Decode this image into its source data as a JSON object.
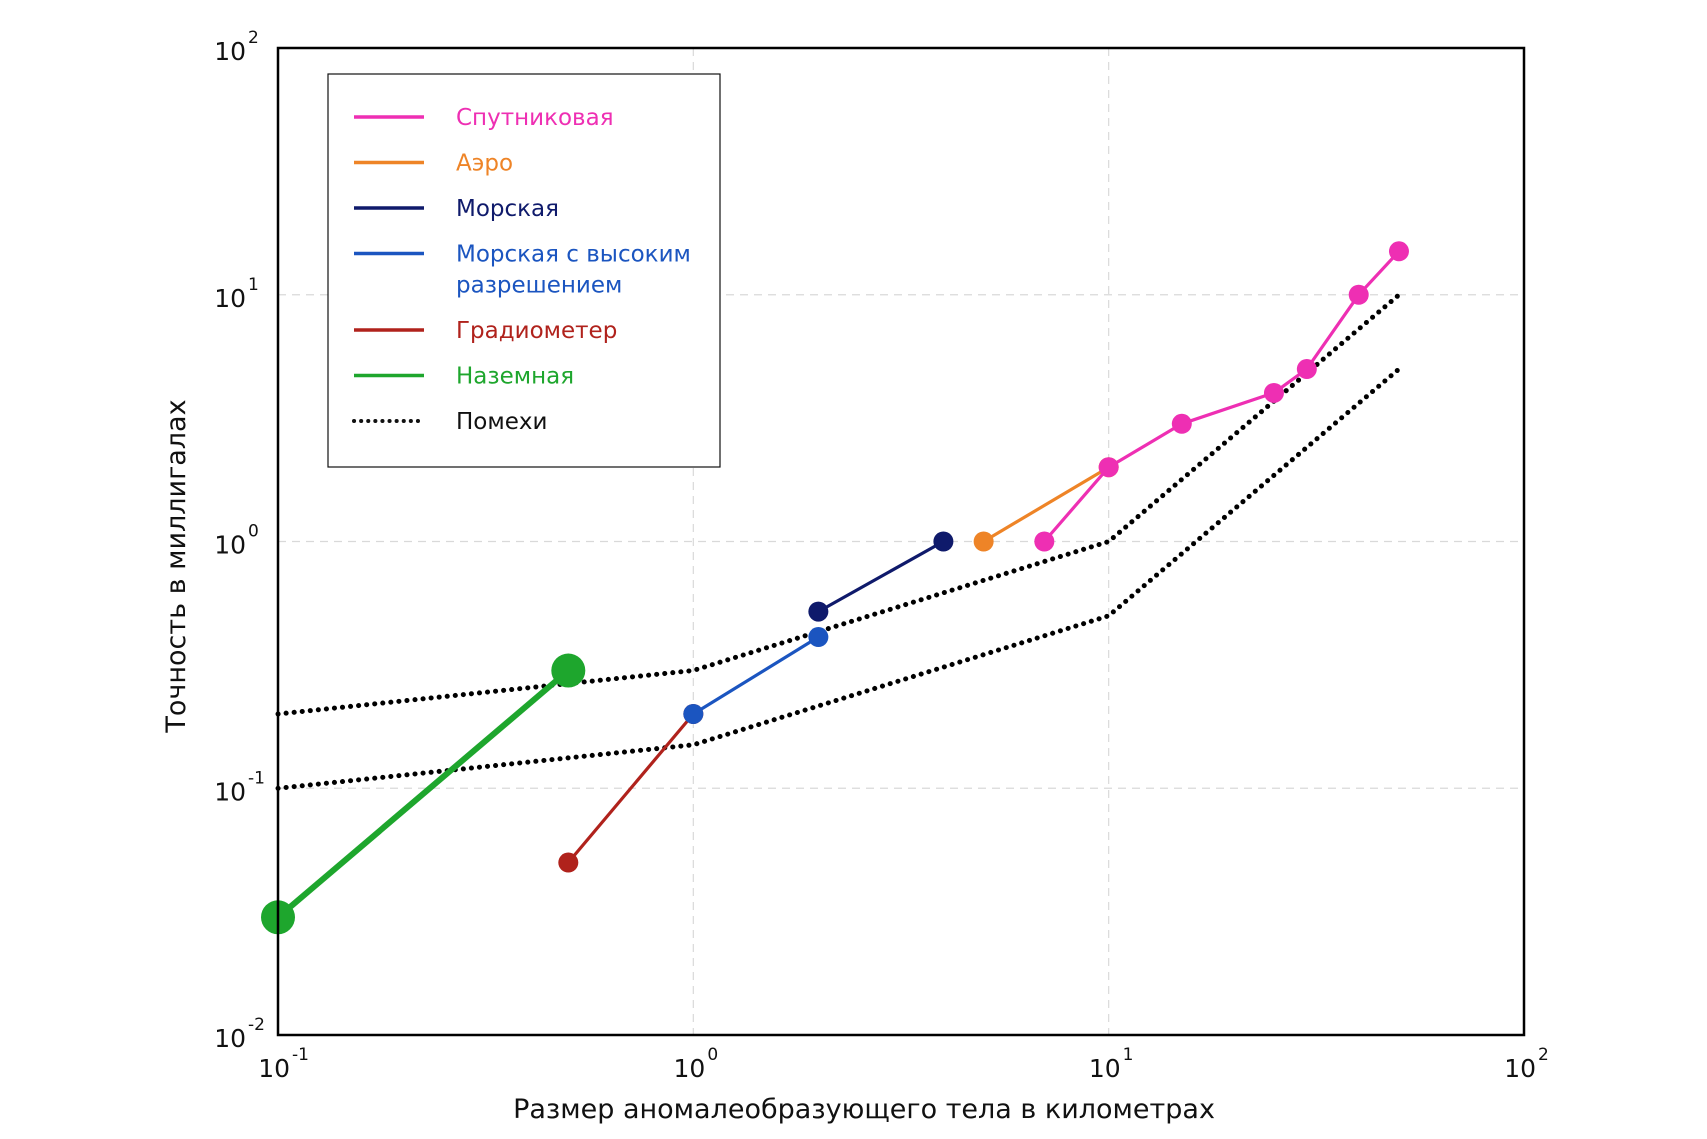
{
  "chart_data": {
    "type": "line",
    "title": "",
    "xlabel": "Размер аномалеобразующего тела в километрах",
    "ylabel": "Точность в миллигалах",
    "xscale": "log",
    "yscale": "log",
    "xlim": [
      0.1,
      100
    ],
    "ylim": [
      0.01,
      100
    ],
    "grid": true,
    "legend_position": "top-left",
    "x_ticks": [
      {
        "base": "10",
        "exp": "-1",
        "value": 0.1
      },
      {
        "base": "10",
        "exp": "0",
        "value": 1
      },
      {
        "base": "10",
        "exp": "1",
        "value": 10
      },
      {
        "base": "10",
        "exp": "2",
        "value": 100
      }
    ],
    "y_ticks": [
      {
        "base": "10",
        "exp": "-2",
        "value": 0.01
      },
      {
        "base": "10",
        "exp": "-1",
        "value": 0.1
      },
      {
        "base": "10",
        "exp": "0",
        "value": 1
      },
      {
        "base": "10",
        "exp": "1",
        "value": 10
      },
      {
        "base": "10",
        "exp": "2",
        "value": 100
      }
    ],
    "series": [
      {
        "name": "Спутниковая",
        "color": "#ee2fb3",
        "style": "solid",
        "marker": "circle",
        "points": [
          {
            "x": 7,
            "y": 1.0
          },
          {
            "x": 10,
            "y": 2.0
          },
          {
            "x": 15,
            "y": 3.0
          },
          {
            "x": 25,
            "y": 4.0
          },
          {
            "x": 30,
            "y": 5.0
          },
          {
            "x": 40,
            "y": 10.0
          },
          {
            "x": 50,
            "y": 15.0
          }
        ]
      },
      {
        "name": "Аэро",
        "color": "#ee8427",
        "style": "solid",
        "marker": "circle",
        "points": [
          {
            "x": 5,
            "y": 1.0
          },
          {
            "x": 10,
            "y": 2.0
          }
        ]
      },
      {
        "name": "Морская",
        "color": "#0f1a6b",
        "style": "solid",
        "marker": "circle",
        "points": [
          {
            "x": 2,
            "y": 0.52
          },
          {
            "x": 4,
            "y": 1.0
          }
        ]
      },
      {
        "name": "Морская с высоким разрешением",
        "color": "#1b55c0",
        "style": "solid",
        "marker": "circle",
        "points": [
          {
            "x": 1,
            "y": 0.2
          },
          {
            "x": 2,
            "y": 0.41
          }
        ]
      },
      {
        "name": "Градиометер",
        "color": "#b0221c",
        "style": "solid",
        "marker": "circle",
        "points": [
          {
            "x": 0.5,
            "y": 0.05
          },
          {
            "x": 1,
            "y": 0.2
          }
        ]
      },
      {
        "name": "Наземная",
        "color": "#1ea62d",
        "style": "solid",
        "marker": "circle",
        "points": [
          {
            "x": 0.1,
            "y": 0.03
          },
          {
            "x": 0.5,
            "y": 0.3
          }
        ]
      },
      {
        "name": "Помехи",
        "color": "#000000",
        "style": "dotted",
        "marker": "none",
        "points": [
          {
            "x": 0.1,
            "y": 0.2
          },
          {
            "x": 1,
            "y": 0.3
          },
          {
            "x": 10,
            "y": 1.0
          },
          {
            "x": 50,
            "y": 10.0
          }
        ]
      },
      {
        "name": "Помехи",
        "color": "#000000",
        "style": "dotted",
        "marker": "none",
        "points": [
          {
            "x": 0.1,
            "y": 0.1
          },
          {
            "x": 1,
            "y": 0.15
          },
          {
            "x": 10,
            "y": 0.5
          },
          {
            "x": 50,
            "y": 5.0
          }
        ]
      }
    ],
    "legend": [
      {
        "label": "Спутниковая",
        "lines": [
          "Спутниковая"
        ],
        "color": "#ee2fb3",
        "style": "solid"
      },
      {
        "label": "Аэро",
        "lines": [
          "Аэро"
        ],
        "color": "#ee8427",
        "style": "solid"
      },
      {
        "label": "Морская",
        "lines": [
          "Морская"
        ],
        "color": "#0f1a6b",
        "style": "solid"
      },
      {
        "label": "Морская с высоким разрешением",
        "lines": [
          "Морская с высоким",
          "разрешением"
        ],
        "color": "#1b55c0",
        "style": "solid"
      },
      {
        "label": "Градиометер",
        "lines": [
          "Градиометер"
        ],
        "color": "#b0221c",
        "style": "solid"
      },
      {
        "label": "Наземная",
        "lines": [
          "Наземная"
        ],
        "color": "#1ea62d",
        "style": "solid"
      },
      {
        "label": "Помехи",
        "lines": [
          "Помехи"
        ],
        "color": "#111111",
        "style": "dotted"
      }
    ]
  }
}
